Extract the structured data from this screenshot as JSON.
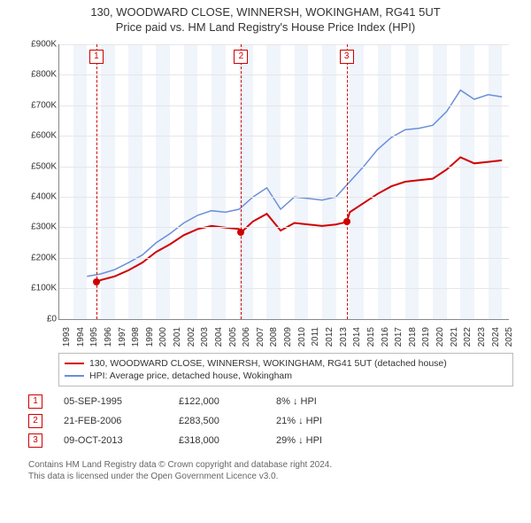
{
  "title": {
    "line1": "130, WOODWARD CLOSE, WINNERSH, WOKINGHAM, RG41 5UT",
    "line2": "Price paid vs. HM Land Registry's House Price Index (HPI)"
  },
  "chart": {
    "type": "line",
    "x_years": [
      1993,
      1994,
      1995,
      1996,
      1997,
      1998,
      1999,
      2000,
      2001,
      2002,
      2003,
      2004,
      2005,
      2006,
      2007,
      2008,
      2009,
      2010,
      2011,
      2012,
      2013,
      2014,
      2015,
      2016,
      2017,
      2018,
      2019,
      2020,
      2021,
      2022,
      2023,
      2024,
      2025
    ],
    "xlim": [
      1993,
      2025.5
    ],
    "ylim": [
      0,
      900
    ],
    "ytick_step": 100,
    "ytick_prefix": "£",
    "ytick_suffix": "K",
    "ytick_zero": "£0",
    "background": "#ffffff",
    "band_color": "#f0f4fb",
    "grid_color": "#e6e6e6",
    "axis_color": "#888888",
    "text_color": "#333333",
    "series": {
      "property": {
        "label": "130, WOODWARD CLOSE, WINNERSH, WOKINGHAM, RG41 5UT (detached house)",
        "color": "#d00000",
        "width": 2,
        "x": [
          1995.68,
          1996,
          1997,
          1998,
          1999,
          2000,
          2001,
          2002,
          2003,
          2004,
          2005,
          2006,
          2006.14,
          2007,
          2008,
          2009,
          2010,
          2011,
          2012,
          2013,
          2013.77,
          2014,
          2015,
          2016,
          2017,
          2018,
          2019,
          2020,
          2021,
          2022,
          2023,
          2024,
          2025
        ],
        "y": [
          122,
          128,
          140,
          160,
          185,
          220,
          245,
          275,
          295,
          305,
          300,
          295,
          283.5,
          320,
          345,
          290,
          315,
          310,
          305,
          310,
          318,
          350,
          380,
          410,
          435,
          450,
          455,
          460,
          490,
          530,
          510,
          515,
          520
        ]
      },
      "hpi": {
        "label": "HPI: Average price, detached house, Wokingham",
        "color": "#6a8fd8",
        "width": 1.5,
        "x": [
          1995,
          1996,
          1997,
          1998,
          1999,
          2000,
          2001,
          2002,
          2003,
          2004,
          2005,
          2006,
          2007,
          2008,
          2009,
          2010,
          2011,
          2012,
          2013,
          2014,
          2015,
          2016,
          2017,
          2018,
          2019,
          2020,
          2021,
          2022,
          2023,
          2024,
          2025
        ],
        "y": [
          140,
          148,
          162,
          185,
          210,
          250,
          280,
          315,
          340,
          355,
          350,
          360,
          400,
          430,
          360,
          400,
          395,
          390,
          400,
          450,
          500,
          555,
          595,
          620,
          625,
          635,
          680,
          750,
          720,
          735,
          728
        ]
      }
    },
    "markers": [
      {
        "num": "1",
        "year": 1995.68,
        "value": 122
      },
      {
        "num": "2",
        "year": 2006.14,
        "value": 283.5
      },
      {
        "num": "3",
        "year": 2013.77,
        "value": 318
      }
    ]
  },
  "legend": {
    "items": [
      {
        "color": "#d00000",
        "label_key": "chart.series.property.label"
      },
      {
        "color": "#6a8fd8",
        "label_key": "chart.series.hpi.label"
      }
    ]
  },
  "sales": [
    {
      "num": "1",
      "date": "05-SEP-1995",
      "price": "£122,000",
      "diff": "8% ↓ HPI"
    },
    {
      "num": "2",
      "date": "21-FEB-2006",
      "price": "£283,500",
      "diff": "21% ↓ HPI"
    },
    {
      "num": "3",
      "date": "09-OCT-2013",
      "price": "£318,000",
      "diff": "29% ↓ HPI"
    }
  ],
  "footer": {
    "line1": "Contains HM Land Registry data © Crown copyright and database right 2024.",
    "line2": "This data is licensed under the Open Government Licence v3.0."
  }
}
